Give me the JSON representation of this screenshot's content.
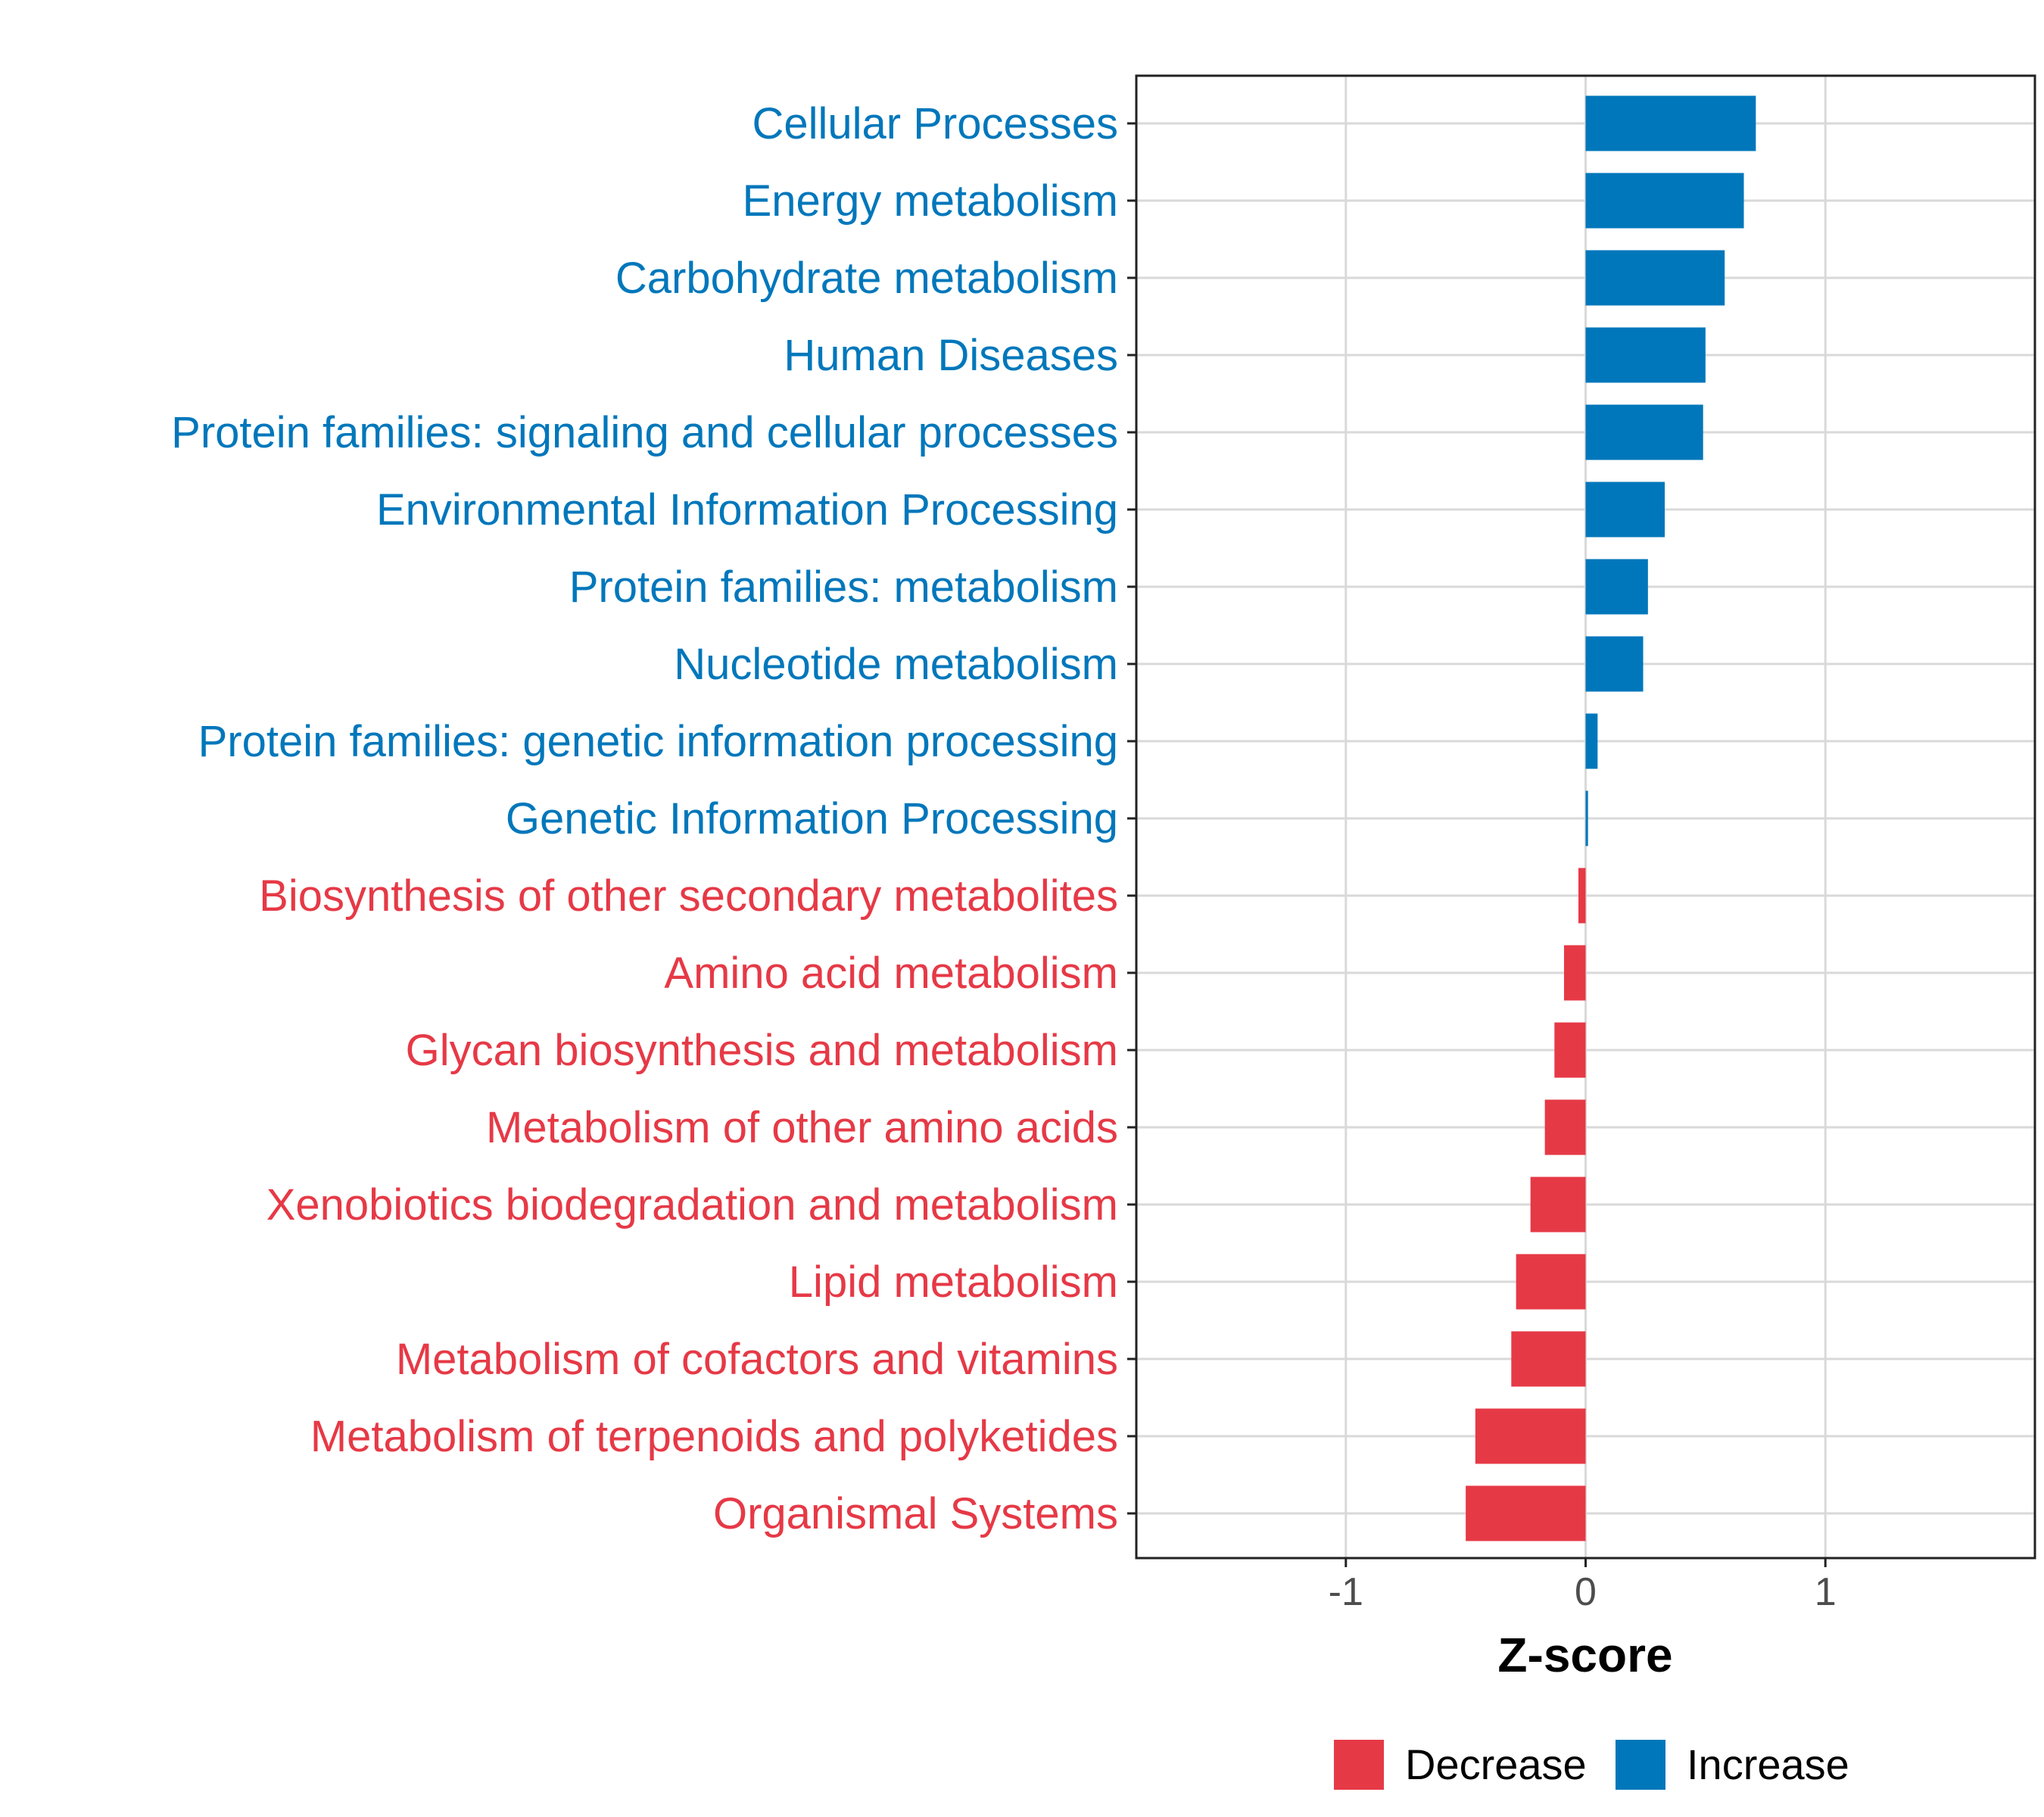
{
  "chart_data": {
    "type": "bar",
    "orientation": "horizontal",
    "title": "",
    "xlabel": "Z-score",
    "ylabel": "",
    "xlim": [
      -1.874,
      1.874
    ],
    "xticks": [
      -1,
      0,
      1
    ],
    "xtick_labels": [
      "-1",
      "0",
      "1"
    ],
    "grid": true,
    "legend_position": "bottom",
    "colors": {
      "Decrease": "#E63946",
      "Increase": "#0077BB"
    },
    "legend": [
      {
        "label": "Decrease",
        "color": "#E63946"
      },
      {
        "label": "Increase",
        "color": "#0077BB"
      }
    ],
    "categories": [
      "Cellular Processes",
      "Energy metabolism",
      "Carbohydrate metabolism",
      "Human Diseases",
      "Protein families: signaling and cellular processes",
      "Environmental Information Processing",
      "Protein families: metabolism",
      "Nucleotide metabolism",
      "Protein families: genetic information processing",
      "Genetic Information Processing",
      "Biosynthesis of other secondary metabolites",
      "Amino acid metabolism",
      "Glycan biosynthesis and metabolism",
      "Metabolism of other amino acids",
      "Xenobiotics biodegradation and metabolism",
      "Lipid metabolism",
      "Metabolism of cofactors and vitamins",
      "Metabolism of terpenoids and polyketides",
      "Organismal Systems"
    ],
    "values": [
      0.71,
      0.66,
      0.58,
      0.5,
      0.49,
      0.33,
      0.26,
      0.24,
      0.05,
      0.01,
      -0.03,
      -0.09,
      -0.13,
      -0.17,
      -0.23,
      -0.29,
      -0.31,
      -0.46,
      -0.5
    ],
    "groups": [
      "Increase",
      "Increase",
      "Increase",
      "Increase",
      "Increase",
      "Increase",
      "Increase",
      "Increase",
      "Increase",
      "Increase",
      "Decrease",
      "Decrease",
      "Decrease",
      "Decrease",
      "Decrease",
      "Decrease",
      "Decrease",
      "Decrease",
      "Decrease"
    ]
  }
}
